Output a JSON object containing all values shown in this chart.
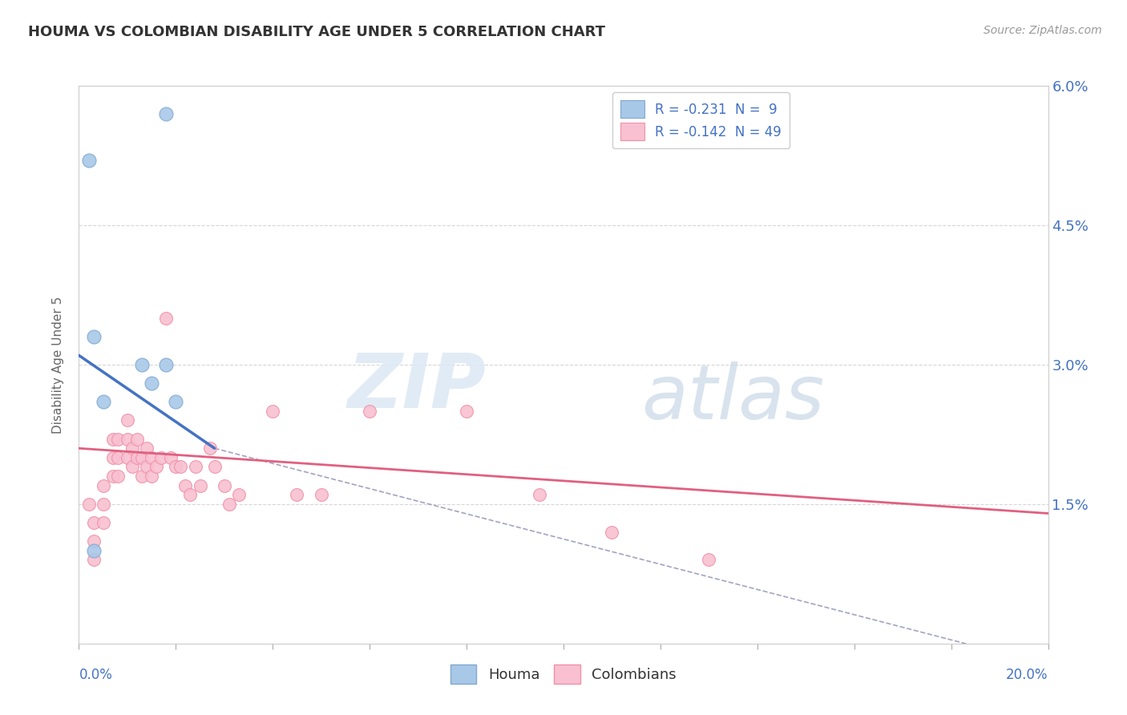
{
  "title": "HOUMA VS COLOMBIAN DISABILITY AGE UNDER 5 CORRELATION CHART",
  "source_text": "Source: ZipAtlas.com",
  "ylabel": "Disability Age Under 5",
  "legend_entries": [
    {
      "label": "R = -0.231  N =  9",
      "color": "#a8c4e0"
    },
    {
      "label": "R = -0.142  N = 49",
      "color": "#f5b8c8"
    }
  ],
  "legend_labels_bottom": [
    "Houma",
    "Colombians"
  ],
  "xmin": 0.0,
  "xmax": 0.2,
  "ymin": 0.0,
  "ymax": 0.06,
  "grid_color": "#cccccc",
  "background_color": "#ffffff",
  "watermark_zip": "ZIP",
  "watermark_atlas": "atlas",
  "houma_points": [
    [
      0.002,
      0.052
    ],
    [
      0.018,
      0.057
    ],
    [
      0.003,
      0.033
    ],
    [
      0.013,
      0.03
    ],
    [
      0.018,
      0.03
    ],
    [
      0.015,
      0.028
    ],
    [
      0.005,
      0.026
    ],
    [
      0.02,
      0.026
    ],
    [
      0.003,
      0.01
    ]
  ],
  "colombian_points": [
    [
      0.002,
      0.015
    ],
    [
      0.003,
      0.013
    ],
    [
      0.003,
      0.011
    ],
    [
      0.003,
      0.009
    ],
    [
      0.005,
      0.017
    ],
    [
      0.005,
      0.015
    ],
    [
      0.005,
      0.013
    ],
    [
      0.007,
      0.022
    ],
    [
      0.007,
      0.02
    ],
    [
      0.007,
      0.018
    ],
    [
      0.008,
      0.022
    ],
    [
      0.008,
      0.02
    ],
    [
      0.008,
      0.018
    ],
    [
      0.01,
      0.024
    ],
    [
      0.01,
      0.022
    ],
    [
      0.01,
      0.02
    ],
    [
      0.011,
      0.021
    ],
    [
      0.011,
      0.019
    ],
    [
      0.012,
      0.022
    ],
    [
      0.012,
      0.02
    ],
    [
      0.013,
      0.02
    ],
    [
      0.013,
      0.018
    ],
    [
      0.014,
      0.021
    ],
    [
      0.014,
      0.019
    ],
    [
      0.015,
      0.02
    ],
    [
      0.015,
      0.018
    ],
    [
      0.016,
      0.019
    ],
    [
      0.017,
      0.02
    ],
    [
      0.018,
      0.035
    ],
    [
      0.019,
      0.02
    ],
    [
      0.02,
      0.019
    ],
    [
      0.021,
      0.019
    ],
    [
      0.022,
      0.017
    ],
    [
      0.023,
      0.016
    ],
    [
      0.024,
      0.019
    ],
    [
      0.025,
      0.017
    ],
    [
      0.027,
      0.021
    ],
    [
      0.028,
      0.019
    ],
    [
      0.03,
      0.017
    ],
    [
      0.031,
      0.015
    ],
    [
      0.033,
      0.016
    ],
    [
      0.04,
      0.025
    ],
    [
      0.045,
      0.016
    ],
    [
      0.05,
      0.016
    ],
    [
      0.06,
      0.025
    ],
    [
      0.08,
      0.025
    ],
    [
      0.095,
      0.016
    ],
    [
      0.11,
      0.012
    ],
    [
      0.13,
      0.009
    ]
  ],
  "houma_line_color": "#4472c4",
  "colombian_line_color": "#e06080",
  "dashed_line_color": "#9999bb",
  "houma_marker_color": "#a8c8e8",
  "colombian_marker_color": "#f8c0d0",
  "houma_marker_edge": "#80a8d0",
  "colombian_marker_edge": "#f090a8",
  "houma_line_xstart": 0.0,
  "houma_line_xend": 0.028,
  "houma_line_ystart": 0.031,
  "houma_line_yend": 0.021,
  "colombian_line_xstart": 0.0,
  "colombian_line_xend": 0.2,
  "colombian_line_ystart": 0.021,
  "colombian_line_yend": 0.014,
  "dashed_line_xstart": 0.028,
  "dashed_line_xend": 0.205,
  "dashed_line_ystart": 0.021,
  "dashed_line_yend": -0.003
}
